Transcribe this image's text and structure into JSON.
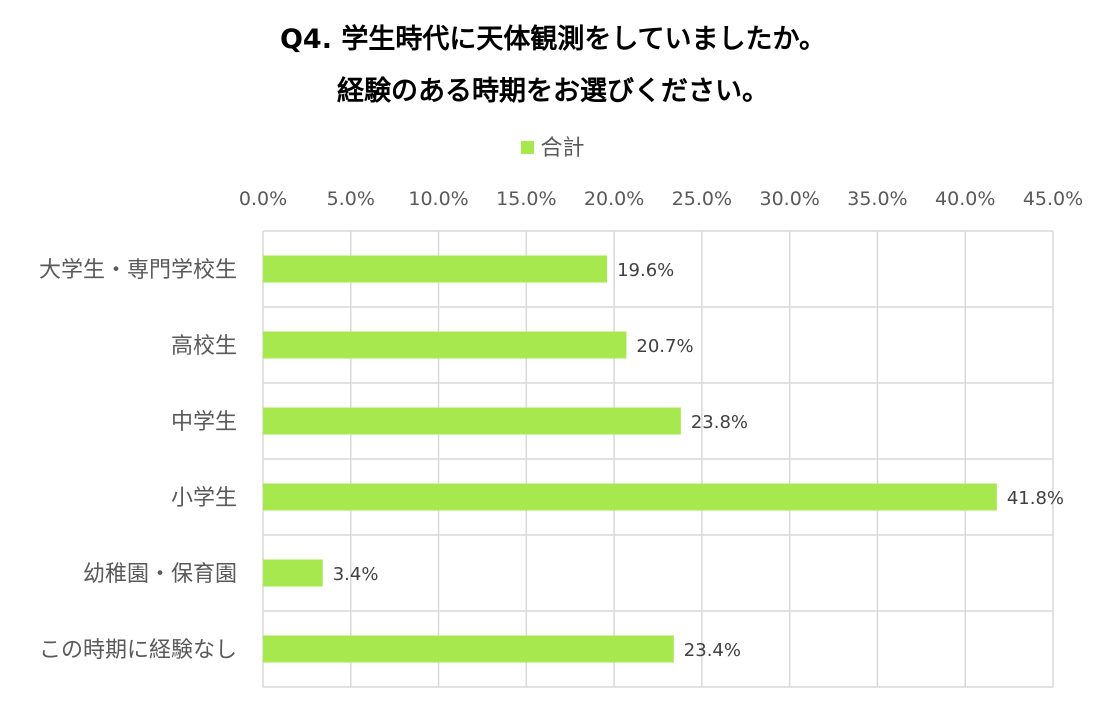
{
  "title_line1": "Q4. 学生時代に天体観測をしていましたか。",
  "title_line2": "経験のある時期をお選びください。",
  "legend": {
    "label": "合計",
    "color": "#a6e84e"
  },
  "chart_data": {
    "type": "bar",
    "orientation": "horizontal",
    "categories": [
      "大学生・専門学校生",
      "高校生",
      "中学生",
      "小学生",
      "幼稚園・保育園",
      "この時期に経験なし"
    ],
    "series": [
      {
        "name": "合計",
        "values": [
          19.6,
          20.7,
          23.8,
          41.8,
          3.4,
          23.4
        ],
        "color": "#a6e84e"
      }
    ],
    "value_labels": [
      "19.6%",
      "20.7%",
      "23.8%",
      "41.8%",
      "3.4%",
      "23.4%"
    ],
    "xlim": [
      0,
      45
    ],
    "x_ticks": [
      0,
      5,
      10,
      15,
      20,
      25,
      30,
      35,
      40,
      45
    ],
    "x_tick_labels": [
      "0.0%",
      "5.0%",
      "10.0%",
      "15.0%",
      "20.0%",
      "25.0%",
      "30.0%",
      "35.0%",
      "40.0%",
      "45.0%"
    ],
    "x_axis_position": "top",
    "grid": true,
    "legend_position": "top"
  }
}
